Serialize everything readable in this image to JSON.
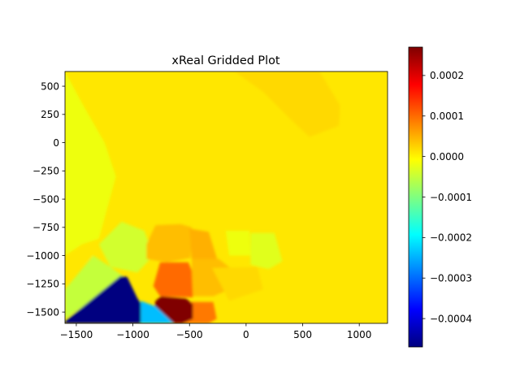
{
  "chart_data": {
    "type": "heatmap",
    "title": "xReal Gridded Plot",
    "xlabel": "",
    "ylabel": "",
    "xlim": [
      -1600,
      1250
    ],
    "ylim": [
      -1600,
      630
    ],
    "x_ticks": [
      {
        "value": -1500,
        "label": "−1500"
      },
      {
        "value": -1000,
        "label": "−1000"
      },
      {
        "value": -500,
        "label": "−500"
      },
      {
        "value": 0,
        "label": "0"
      },
      {
        "value": 500,
        "label": "500"
      },
      {
        "value": 1000,
        "label": "1000"
      }
    ],
    "y_ticks": [
      {
        "value": 500,
        "label": "500"
      },
      {
        "value": 250,
        "label": "250"
      },
      {
        "value": 0,
        "label": "0"
      },
      {
        "value": -250,
        "label": "−250"
      },
      {
        "value": -500,
        "label": "−500"
      },
      {
        "value": -750,
        "label": "−750"
      },
      {
        "value": -1000,
        "label": "−1000"
      },
      {
        "value": -1250,
        "label": "−1250"
      },
      {
        "value": -1500,
        "label": "−1500"
      }
    ],
    "colormap": "jet",
    "colorbar": {
      "min": -0.00047,
      "max": 0.00027,
      "ticks": [
        {
          "value": 0.0002,
          "label": "0.0002"
        },
        {
          "value": 0.0001,
          "label": "0.0001"
        },
        {
          "value": 0.0,
          "label": "0.0000"
        },
        {
          "value": -0.0001,
          "label": "−0.0001"
        },
        {
          "value": -0.0002,
          "label": "−0.0002"
        },
        {
          "value": -0.0003,
          "label": "−0.0003"
        },
        {
          "value": -0.0004,
          "label": "−0.0004"
        }
      ]
    },
    "background_value": 1e-05,
    "regions": [
      {
        "name": "upper-right-plateau",
        "value": 2e-05,
        "points": [
          [
            -100,
            630
          ],
          [
            650,
            630
          ],
          [
            830,
            330
          ],
          [
            820,
            150
          ],
          [
            560,
            50
          ],
          [
            400,
            200
          ],
          [
            150,
            450
          ]
        ]
      },
      {
        "name": "left-green-band",
        "value": -2e-05,
        "points": [
          [
            -1600,
            630
          ],
          [
            -1600,
            -1000
          ],
          [
            -1450,
            -900
          ],
          [
            -1300,
            -850
          ],
          [
            -1150,
            -300
          ],
          [
            -1250,
            0
          ],
          [
            -1450,
            350
          ]
        ]
      },
      {
        "name": "lower-left-yellow",
        "value": 1e-05,
        "points": [
          [
            -1600,
            -1000
          ],
          [
            -1450,
            -900
          ],
          [
            -1350,
            -1000
          ],
          [
            -1600,
            -1200
          ]
        ]
      },
      {
        "name": "green-patch-a",
        "value": -4e-05,
        "points": [
          [
            -1300,
            -900
          ],
          [
            -1100,
            -700
          ],
          [
            -900,
            -780
          ],
          [
            -820,
            -1000
          ],
          [
            -960,
            -1150
          ],
          [
            -1200,
            -1100
          ]
        ]
      },
      {
        "name": "green-patch-b",
        "value": -5e-05,
        "points": [
          [
            -1600,
            -1300
          ],
          [
            -1350,
            -1000
          ],
          [
            -1200,
            -1100
          ],
          [
            -1090,
            -1180
          ],
          [
            -1310,
            -1360
          ],
          [
            -1600,
            -1560
          ]
        ]
      },
      {
        "name": "green-patch-c",
        "value": -3e-05,
        "points": [
          [
            40,
            -800
          ],
          [
            250,
            -800
          ],
          [
            320,
            -1050
          ],
          [
            200,
            -1120
          ],
          [
            40,
            -1080
          ]
        ]
      },
      {
        "name": "green-patch-d",
        "value": -2e-05,
        "points": [
          [
            -180,
            -780
          ],
          [
            30,
            -780
          ],
          [
            40,
            -1000
          ],
          [
            -150,
            -1000
          ]
        ]
      },
      {
        "name": "gold-patch-a",
        "value": 4e-05,
        "points": [
          [
            -880,
            -900
          ],
          [
            -800,
            -730
          ],
          [
            -580,
            -720
          ],
          [
            -480,
            -750
          ],
          [
            -490,
            -1020
          ],
          [
            -700,
            -1060
          ],
          [
            -880,
            -1030
          ]
        ]
      },
      {
        "name": "gold-patch-b",
        "value": 5e-05,
        "points": [
          [
            -500,
            -760
          ],
          [
            -330,
            -790
          ],
          [
            -250,
            -1050
          ],
          [
            -480,
            -1040
          ]
        ]
      },
      {
        "name": "gold-patch-c",
        "value": 4e-05,
        "points": [
          [
            -480,
            -1030
          ],
          [
            -240,
            -1030
          ],
          [
            -140,
            -1110
          ],
          [
            -150,
            -1300
          ],
          [
            -290,
            -1360
          ],
          [
            -480,
            -1360
          ]
        ]
      },
      {
        "name": "yellow-patch-lower",
        "value": 2e-05,
        "points": [
          [
            -300,
            -1110
          ],
          [
            100,
            -1100
          ],
          [
            150,
            -1300
          ],
          [
            -150,
            -1400
          ]
        ]
      },
      {
        "name": "orange-patch-mid",
        "value": 0.0001,
        "points": [
          [
            -760,
            -1060
          ],
          [
            -510,
            -1060
          ],
          [
            -480,
            -1130
          ],
          [
            -470,
            -1370
          ],
          [
            -760,
            -1360
          ],
          [
            -820,
            -1270
          ]
        ]
      },
      {
        "name": "orange-patch-low",
        "value": 9e-05,
        "points": [
          [
            -560,
            -1410
          ],
          [
            -290,
            -1410
          ],
          [
            -260,
            -1560
          ],
          [
            -330,
            -1600
          ],
          [
            -560,
            -1600
          ]
        ]
      },
      {
        "name": "red-patch",
        "value": 0.00027,
        "points": [
          [
            -750,
            -1360
          ],
          [
            -530,
            -1380
          ],
          [
            -470,
            -1430
          ],
          [
            -470,
            -1560
          ],
          [
            -560,
            -1600
          ],
          [
            -720,
            -1600
          ],
          [
            -820,
            -1510
          ],
          [
            -800,
            -1400
          ]
        ]
      },
      {
        "name": "cyan-patch",
        "value": -0.00024,
        "points": [
          [
            -930,
            -1400
          ],
          [
            -800,
            -1450
          ],
          [
            -640,
            -1600
          ],
          [
            -930,
            -1600
          ]
        ]
      },
      {
        "name": "deep-blue-triangle",
        "value": -0.00047,
        "points": [
          [
            -1600,
            -1580
          ],
          [
            -1110,
            -1180
          ],
          [
            -1050,
            -1190
          ],
          [
            -960,
            -1380
          ],
          [
            -930,
            -1420
          ],
          [
            -930,
            -1600
          ],
          [
            -1600,
            -1600
          ]
        ]
      }
    ]
  }
}
